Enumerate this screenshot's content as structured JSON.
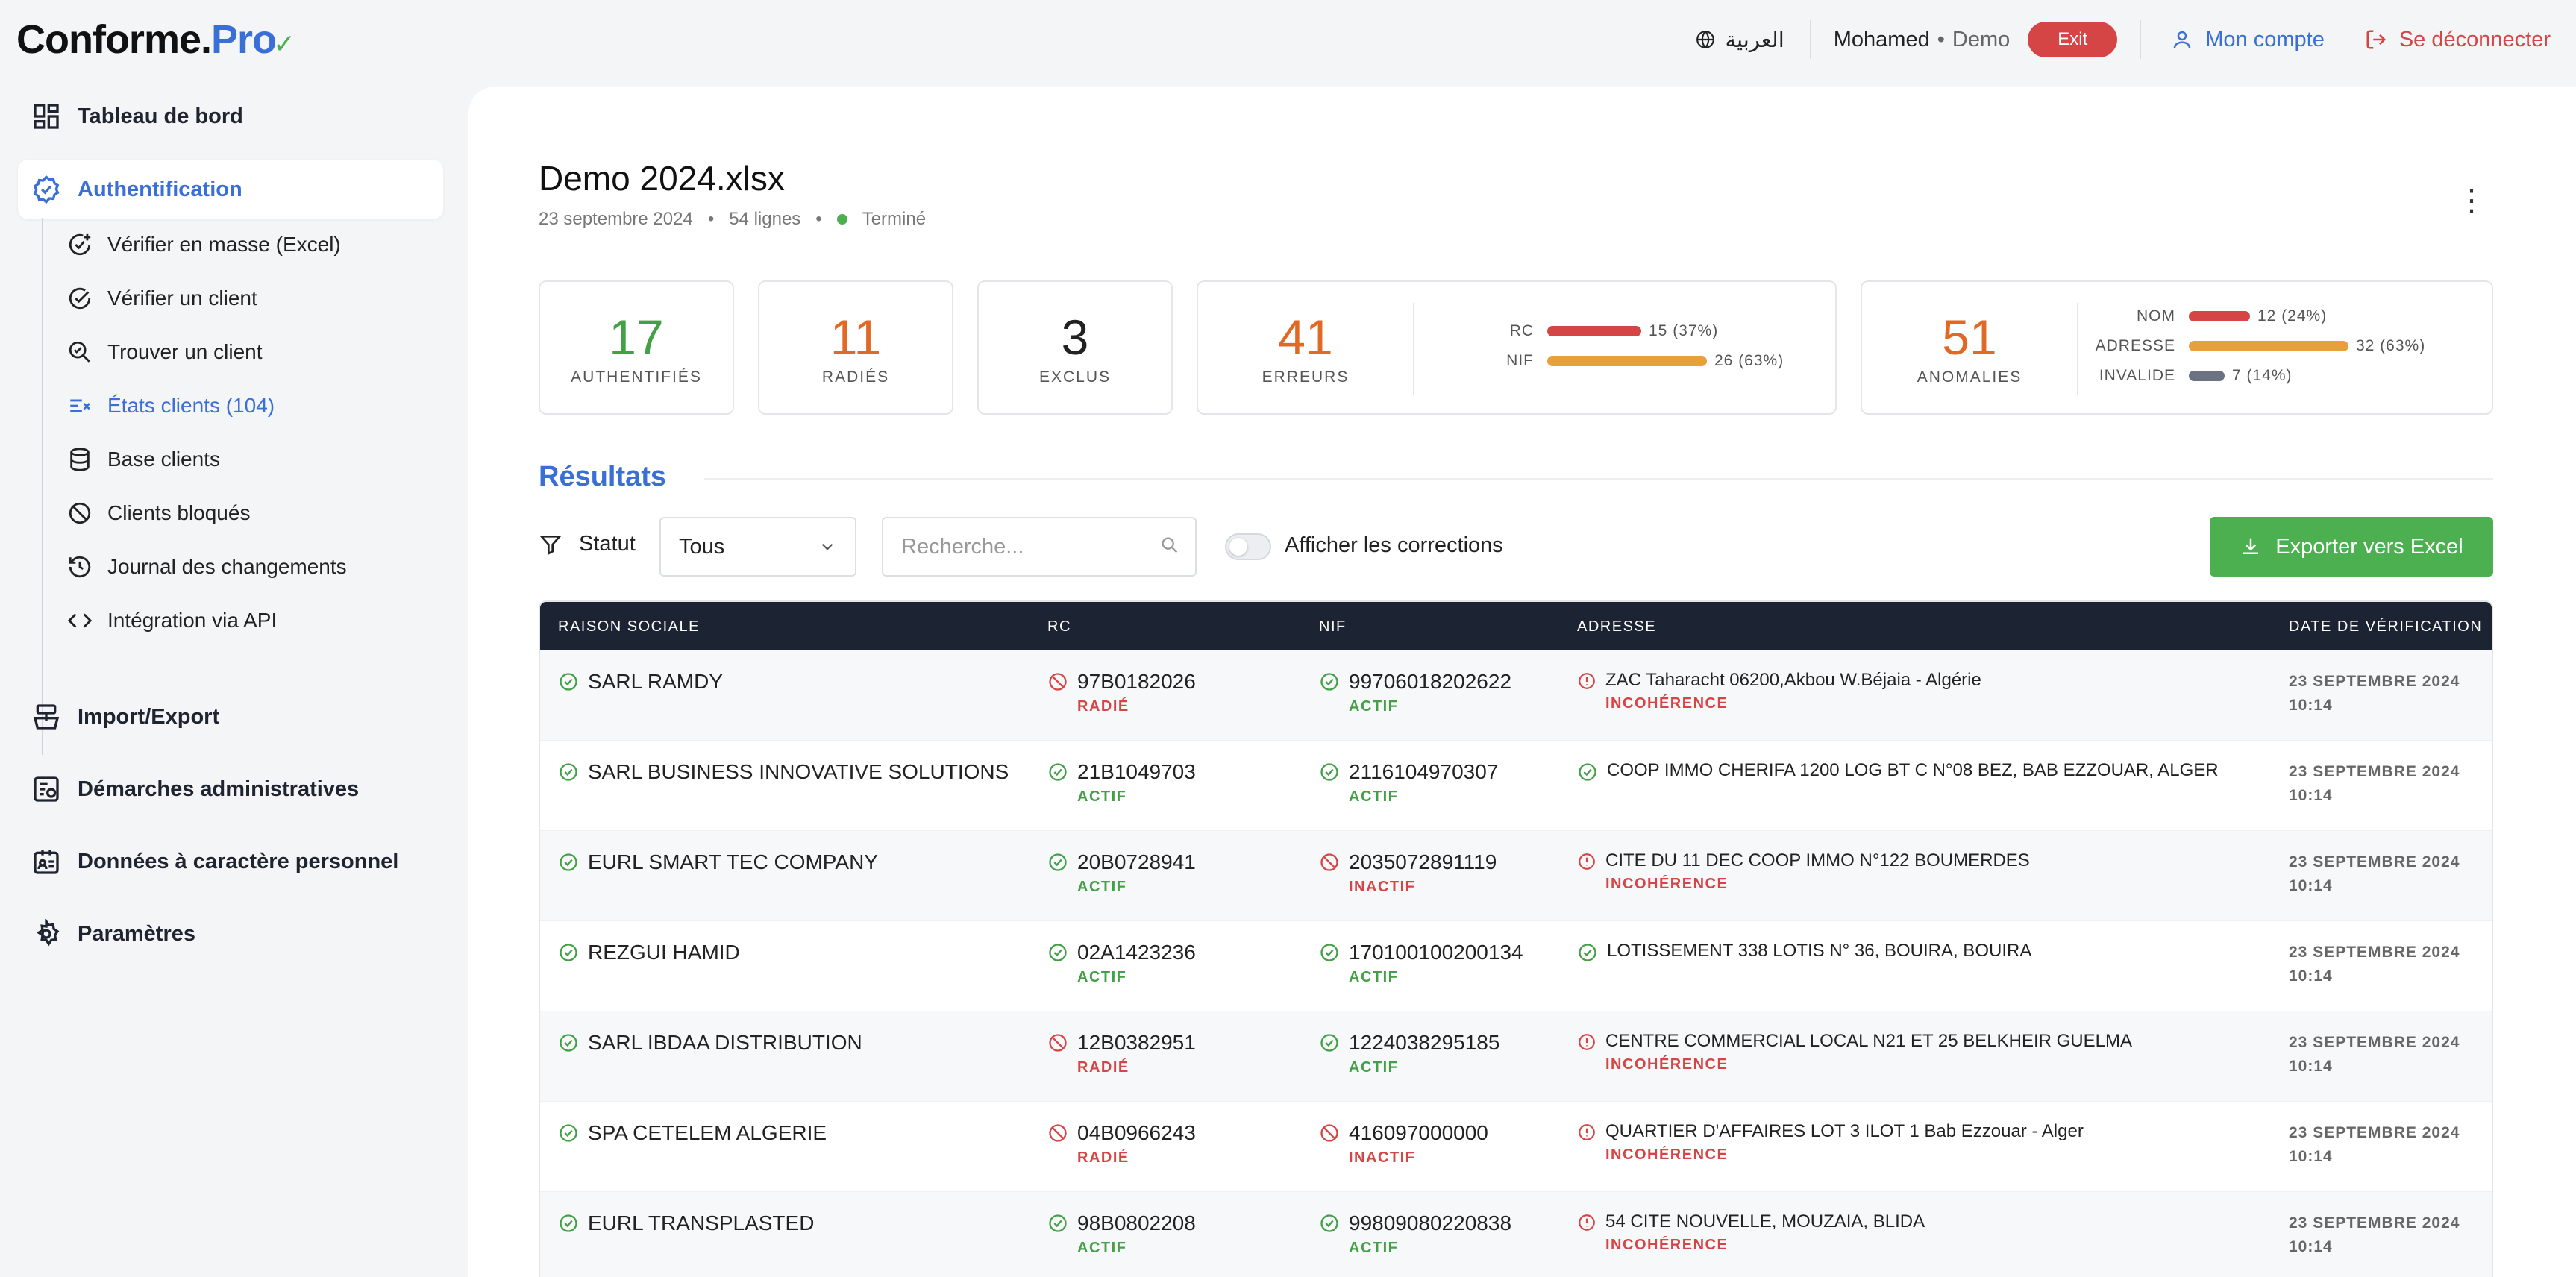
{
  "header": {
    "logo_main": "Conforme.",
    "logo_pro": "Pro",
    "language": "العربية",
    "user_name": "Mohamed",
    "user_separator": "•",
    "user_mode": "Demo",
    "exit_label": "Exit",
    "account_label": "Mon compte",
    "logout_label": "Se déconnecter",
    "icons": {
      "language": "globe-icon",
      "account": "user-icon",
      "logout": "logout-icon"
    }
  },
  "sidebar": {
    "top_items": [
      {
        "label": "Tableau de bord",
        "icon": "dashboard-icon"
      },
      {
        "label": "Authentification",
        "icon": "badge-check-icon",
        "active": true
      },
      {
        "label": "Import/Export",
        "icon": "import-export-icon"
      },
      {
        "label": "Démarches administratives",
        "icon": "admin-procedures-icon"
      },
      {
        "label": "Données à caractère personnel",
        "icon": "personal-data-icon"
      },
      {
        "label": "Paramètres",
        "icon": "gear-icon"
      }
    ],
    "sub_items": [
      {
        "label": "Vérifier en masse (Excel)",
        "icon": "bulk-check-icon"
      },
      {
        "label": "Vérifier un client",
        "icon": "check-circle-icon"
      },
      {
        "label": "Trouver un client",
        "icon": "search-check-icon"
      },
      {
        "label": "États clients (104)",
        "icon": "list-check-icon",
        "active": true
      },
      {
        "label": "Base clients",
        "icon": "database-icon"
      },
      {
        "label": "Clients bloqués",
        "icon": "ban-icon"
      },
      {
        "label": "Journal des changements",
        "icon": "history-icon"
      },
      {
        "label": "Intégration via API",
        "icon": "code-icon"
      }
    ]
  },
  "file": {
    "title": "Demo 2024.xlsx",
    "date": "23 septembre 2024",
    "rows": "54 lignes",
    "separator": "•",
    "status": "Terminé"
  },
  "stats": {
    "authentified": {
      "value": "17",
      "label": "AUTHENTIFIÉS"
    },
    "radiated": {
      "value": "11",
      "label": "RADIÉS"
    },
    "excluded": {
      "value": "3",
      "label": "EXCLUS"
    },
    "errors": {
      "value": "41",
      "label": "ERREURS",
      "bars": [
        {
          "label": "RC",
          "text": "15 (37%)",
          "fraction": 0.37,
          "color": "#d64545"
        },
        {
          "label": "NIF",
          "text": "26 (63%)",
          "fraction": 0.63,
          "color": "#e8a13a"
        }
      ]
    },
    "anomalies": {
      "value": "51",
      "label": "ANOMALIES",
      "bars": [
        {
          "label": "NOM",
          "text": "12 (24%)",
          "fraction": 0.24,
          "color": "#d64545"
        },
        {
          "label": "ADRESSE",
          "text": "32 (63%)",
          "fraction": 0.63,
          "color": "#e8a13a"
        },
        {
          "label": "INVALIDE",
          "text": "7 (14%)",
          "fraction": 0.14,
          "color": "#6b7280"
        }
      ]
    }
  },
  "results": {
    "title": "Résultats",
    "filter_label": "Statut",
    "filter_value": "Tous",
    "search_placeholder": "Recherche...",
    "toggle_label": "Afficher les corrections",
    "export_label": "Exporter vers Excel"
  },
  "table": {
    "headers": {
      "name": "RAISON SOCIALE",
      "rc": "RC",
      "nif": "NIF",
      "address": "ADRESSE",
      "date": "DATE DE VÉRIFICATION"
    },
    "rows": [
      {
        "name": "SARL RAMDY",
        "rc": "97B0182026",
        "rc_status": "RADIÉ",
        "rc_ok": false,
        "nif": "99706018202622",
        "nif_status": "ACTIF",
        "nif_ok": true,
        "address": "ZAC Taharacht 06200,Akbou W.Béjaia - Algérie",
        "address_status": "INCOHÉRENCE",
        "address_ok": false,
        "date": "23 SEPTEMBRE 2024",
        "time": "10:14"
      },
      {
        "name": "SARL BUSINESS INNOVATIVE SOLUTIONS",
        "rc": "21B1049703",
        "rc_status": "ACTIF",
        "rc_ok": true,
        "nif": "2116104970307",
        "nif_status": "ACTIF",
        "nif_ok": true,
        "address": "COOP IMMO CHERIFA 1200 LOG BT C N°08 BEZ, BAB EZZOUAR, ALGER",
        "address_status": "",
        "address_ok": true,
        "date": "23 SEPTEMBRE 2024",
        "time": "10:14"
      },
      {
        "name": "EURL SMART TEC COMPANY",
        "rc": "20B0728941",
        "rc_status": "ACTIF",
        "rc_ok": true,
        "nif": "2035072891119",
        "nif_status": "INACTIF",
        "nif_ok": false,
        "address": "CITE DU 11 DEC COOP IMMO N°122 BOUMERDES",
        "address_status": "INCOHÉRENCE",
        "address_ok": false,
        "date": "23 SEPTEMBRE 2024",
        "time": "10:14"
      },
      {
        "name": "REZGUI HAMID",
        "rc": "02A1423236",
        "rc_status": "ACTIF",
        "rc_ok": true,
        "nif": "170100100200134",
        "nif_status": "ACTIF",
        "nif_ok": true,
        "address": "LOTISSEMENT 338 LOTIS N° 36, BOUIRA, BOUIRA",
        "address_status": "",
        "address_ok": true,
        "date": "23 SEPTEMBRE 2024",
        "time": "10:14"
      },
      {
        "name": "SARL IBDAA DISTRIBUTION",
        "rc": "12B0382951",
        "rc_status": "RADIÉ",
        "rc_ok": false,
        "nif": "1224038295185",
        "nif_status": "ACTIF",
        "nif_ok": true,
        "address": "CENTRE COMMERCIAL LOCAL N21 ET 25 BELKHEIR GUELMA",
        "address_status": "INCOHÉRENCE",
        "address_ok": false,
        "date": "23 SEPTEMBRE 2024",
        "time": "10:14"
      },
      {
        "name": "SPA CETELEM ALGERIE",
        "rc": "04B0966243",
        "rc_status": "RADIÉ",
        "rc_ok": false,
        "nif": "416097000000",
        "nif_status": "INACTIF",
        "nif_ok": false,
        "address": "QUARTIER D'AFFAIRES LOT 3 ILOT 1 Bab Ezzouar - Alger",
        "address_status": "INCOHÉRENCE",
        "address_ok": false,
        "date": "23 SEPTEMBRE 2024",
        "time": "10:14"
      },
      {
        "name": "EURL TRANSPLASTED",
        "rc": "98B0802208",
        "rc_status": "ACTIF",
        "rc_ok": true,
        "nif": "99809080220838",
        "nif_status": "ACTIF",
        "nif_ok": true,
        "address": "54 CITE NOUVELLE, MOUZAIA, BLIDA",
        "address_status": "INCOHÉRENCE",
        "address_ok": false,
        "date": "23 SEPTEMBRE 2024",
        "time": "10:14"
      }
    ]
  },
  "colors": {
    "accent": "#3b6fd8",
    "success": "#43a047",
    "danger": "#d64545",
    "warning": "#e8a13a",
    "orange": "#e06a25",
    "dark": "#1c2333"
  }
}
